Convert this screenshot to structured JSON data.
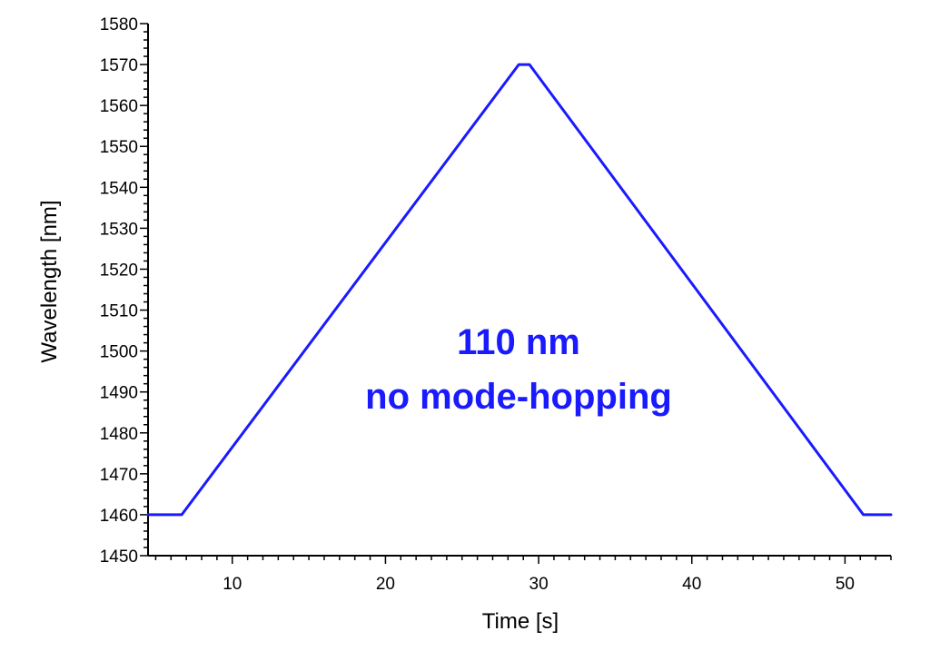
{
  "chart_data": {
    "type": "line",
    "title": "",
    "xlabel": "Time [s]",
    "ylabel": "Wavelength [nm]",
    "xlim": [
      4.5,
      53
    ],
    "ylim": [
      1450,
      1580
    ],
    "x_ticks": [
      10,
      20,
      30,
      40,
      50
    ],
    "x_tick_labels": [
      "10",
      "20",
      "30",
      "40",
      "50"
    ],
    "y_ticks": [
      1450,
      1460,
      1470,
      1480,
      1490,
      1500,
      1510,
      1520,
      1530,
      1540,
      1550,
      1560,
      1570,
      1580
    ],
    "y_tick_labels": [
      "1450",
      "1460",
      "1470",
      "1480",
      "1490",
      "1500",
      "1510",
      "1520",
      "1530",
      "1540",
      "1550",
      "1560",
      "1570",
      "1580"
    ],
    "grid": false,
    "line_color": "#1a1aff",
    "series": [
      {
        "x": [
          4.5,
          6.7,
          28.7,
          29.4,
          51.2,
          53
        ],
        "y": [
          1460,
          1460,
          1570,
          1570,
          1460,
          1460
        ]
      }
    ],
    "annotations": [
      "110 nm",
      "no mode-hopping"
    ]
  }
}
